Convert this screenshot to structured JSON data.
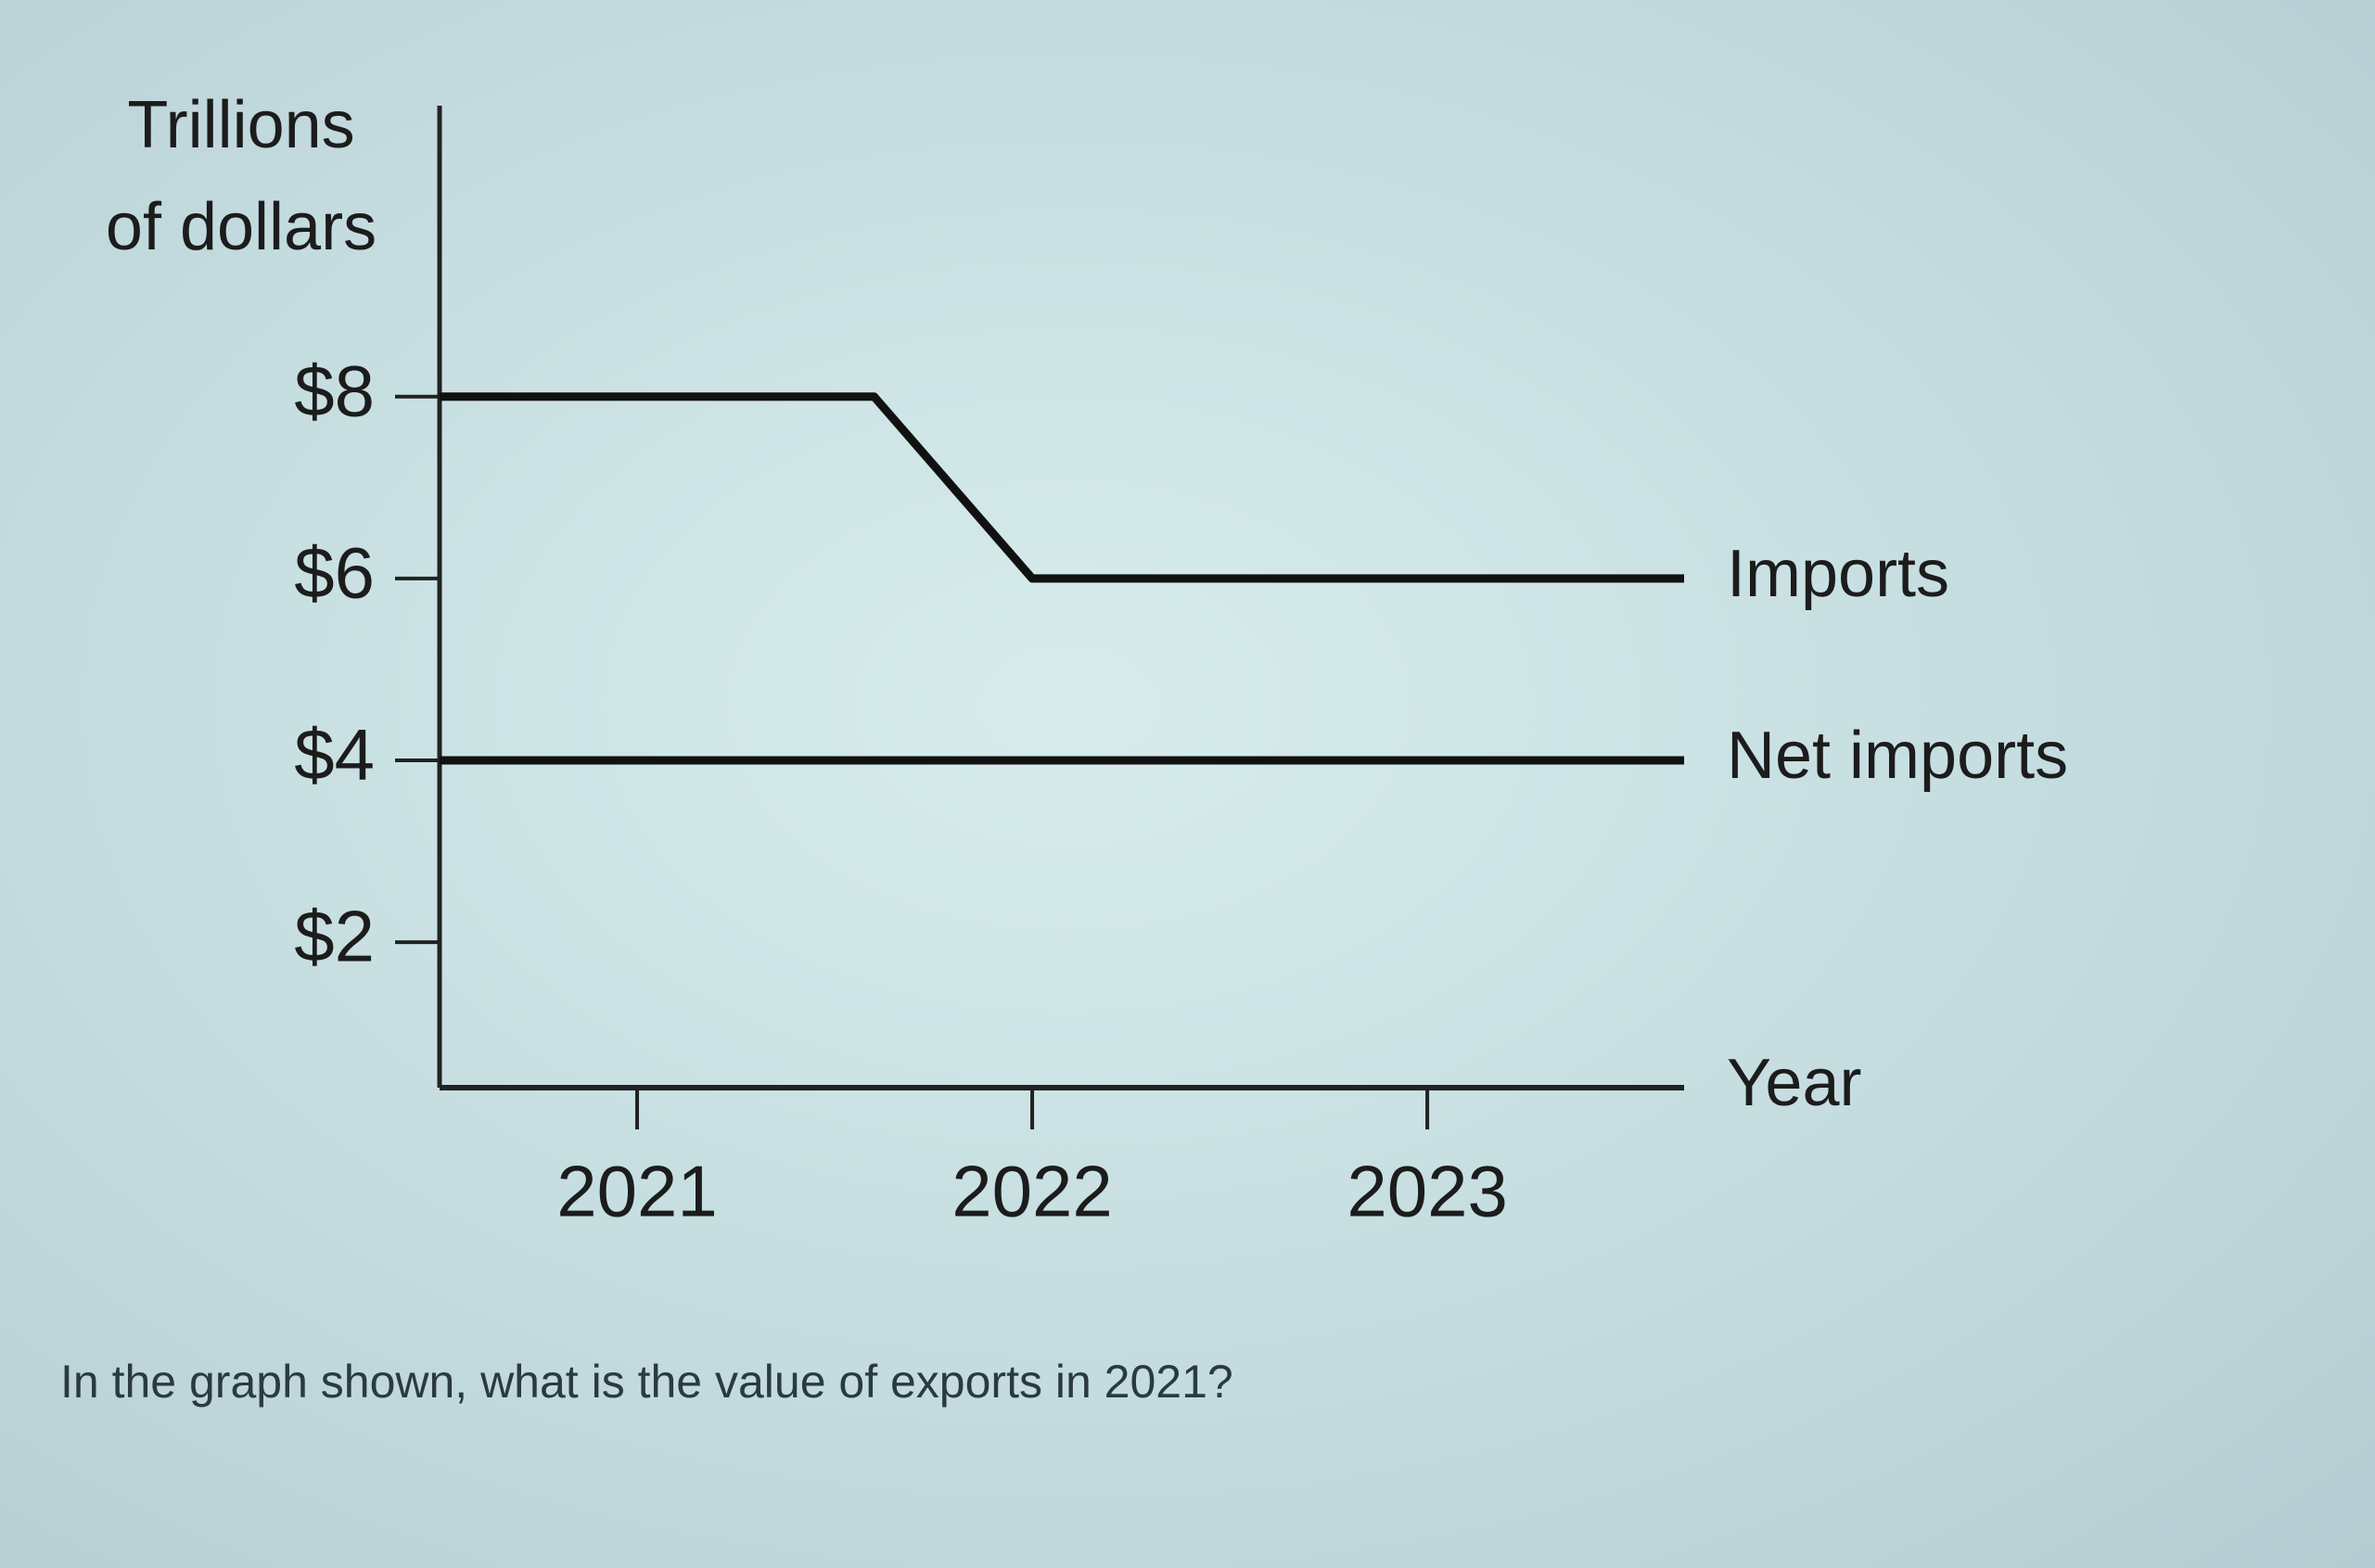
{
  "chart_data": {
    "type": "line",
    "y_label_lines": [
      "Trillions",
      "of dollars"
    ],
    "xlabel": "Year",
    "xlim": [
      2020.5,
      2023.65
    ],
    "xticks": [
      2021,
      2022,
      2023
    ],
    "ylim": [
      0.4,
      11.2
    ],
    "yticks": [
      {
        "value": 2,
        "label": "$2"
      },
      {
        "value": 4,
        "label": "$4"
      },
      {
        "value": 6,
        "label": "$6"
      },
      {
        "value": 8,
        "label": "$8"
      }
    ],
    "series": [
      {
        "name": "Imports",
        "color": "#111111",
        "x": [
          2020.5,
          2021.6,
          2022,
          2023.65
        ],
        "values": [
          8,
          8,
          6,
          6
        ]
      },
      {
        "name": "Net imports",
        "color": "#111111",
        "x": [
          2020.5,
          2023.65
        ],
        "values": [
          4,
          4
        ]
      }
    ]
  },
  "question": "In the graph shown, what is the value of exports in 2021?"
}
